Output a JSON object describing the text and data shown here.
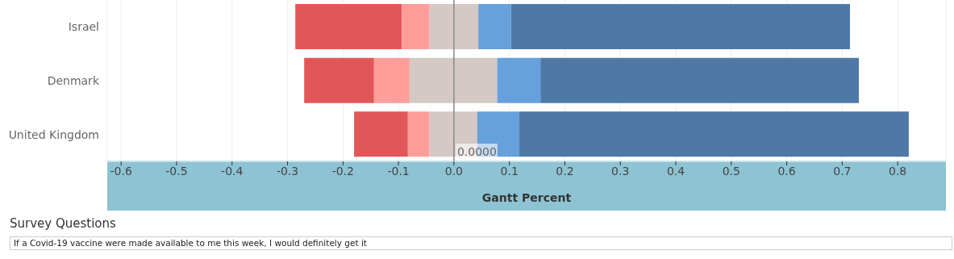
{
  "chart_data": {
    "type": "bar",
    "orientation": "horizontal",
    "xlabel": "Gantt Percent",
    "categories": [
      "Israel",
      "Denmark",
      "United Kingdom"
    ],
    "series": [
      {
        "color": "#e15759",
        "base": [
          -0.286,
          -0.27,
          -0.18
        ],
        "values": [
          0.192,
          0.126,
          0.097
        ]
      },
      {
        "color": "#ff9d9a",
        "base": [
          -0.094,
          -0.144,
          -0.083
        ],
        "values": [
          0.05,
          0.064,
          0.039
        ]
      },
      {
        "color": "#d4c9c4",
        "base": [
          -0.044,
          -0.08,
          -0.044
        ],
        "values": [
          0.088,
          0.158,
          0.086
        ]
      },
      {
        "color": "#66a0dd",
        "base": [
          0.044,
          0.078,
          0.042
        ],
        "values": [
          0.059,
          0.078,
          0.076
        ]
      },
      {
        "color": "#4e79a7",
        "base": [
          0.103,
          0.156,
          0.118
        ],
        "values": [
          0.611,
          0.574,
          0.702
        ]
      }
    ],
    "xlim": [
      -0.625,
      0.887
    ],
    "xticks": [
      {
        "value": -0.6,
        "label": "-0.6"
      },
      {
        "value": -0.5,
        "label": "-0.5"
      },
      {
        "value": -0.4,
        "label": "-0.4"
      },
      {
        "value": -0.3,
        "label": "-0.3"
      },
      {
        "value": -0.2,
        "label": "-0.2"
      },
      {
        "value": -0.1,
        "label": "-0.1"
      },
      {
        "value": 0,
        "label": "0.0"
      },
      0.1,
      0.2,
      0.3,
      0.4,
      0.5,
      0.6,
      0.7,
      0.8
    ],
    "grid": "x",
    "ref_lines": [
      {
        "axis": "x",
        "value": 0,
        "label": "0.0000",
        "color": "#888888"
      }
    ],
    "annotations": [
      "Survey Questions",
      "If a Covid-19 vaccine were made available to me this week, I would definitely get it"
    ]
  }
}
